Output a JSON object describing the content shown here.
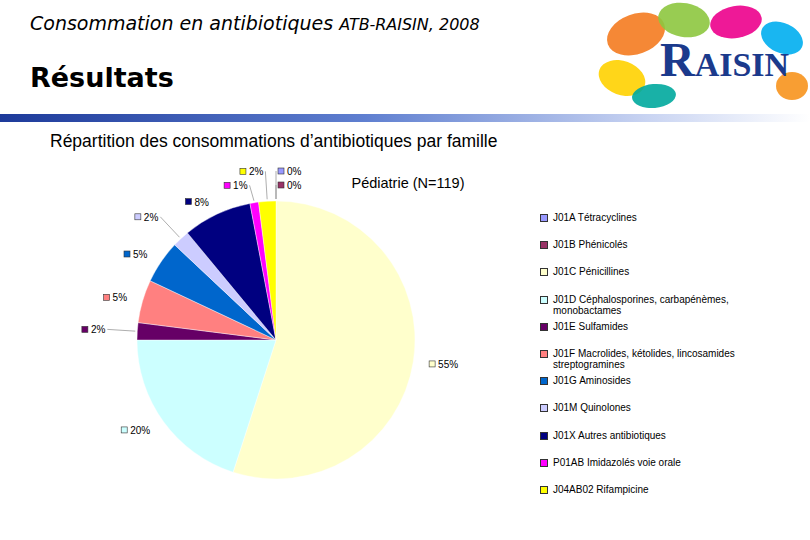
{
  "slide": {
    "title_main": "Consommation en antibiotiques",
    "title_source": "ATB-RAISIN, 2008",
    "section": "Résultats",
    "logo": "RAISIN",
    "subtitle": "Répartition des consommations d’antibiotiques par famille"
  },
  "chart_data": {
    "type": "pie",
    "title": "Pédiatrie (N=119)",
    "categories": [
      "J01A Tétracyclines",
      "J01B Phénicolés",
      "J01C Pénicillines",
      "J01D Céphalosporines, carbapénèmes, monobactames",
      "J01E Sulfamides",
      "J01F Macrolides, kétolides, lincosamides streptogramines",
      "J01G Aminosides",
      "J01M Quinolones",
      "J01X Autres antibiotiques",
      "P01AB Imidazolés voie orale",
      "J04AB02 Rifampicine"
    ],
    "values": [
      0,
      0,
      55,
      20,
      2,
      5,
      5,
      2,
      8,
      1,
      2
    ],
    "value_labels": [
      "0%",
      "0%",
      "55%",
      "20%",
      "2%",
      "5%",
      "5%",
      "2%",
      "8%",
      "1%",
      "2%"
    ],
    "colors": [
      "#9999ff",
      "#993366",
      "#ffffcc",
      "#ccffff",
      "#660066",
      "#ff8080",
      "#0066cc",
      "#ccccff",
      "#000080",
      "#ff00ff",
      "#ffff00"
    ],
    "data_labels": true,
    "legend": "right"
  }
}
